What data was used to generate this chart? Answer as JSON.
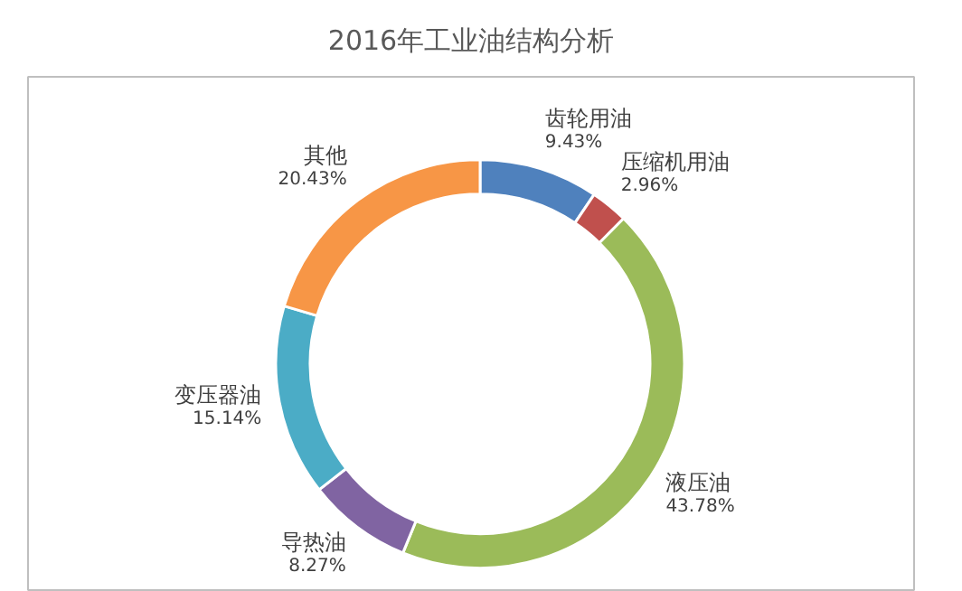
{
  "chart_data": {
    "type": "donut",
    "title": "2016年工业油结构分析",
    "categories": [
      "齿轮用油",
      "压缩机用油",
      "液压油",
      "导热油",
      "变压器油",
      "其他"
    ],
    "values": [
      9.43,
      2.96,
      43.78,
      8.27,
      15.14,
      20.43
    ],
    "value_labels": [
      "9.43%",
      "2.96%",
      "43.78%",
      "8.27%",
      "15.14%",
      "20.43%"
    ],
    "colors": [
      "#4f81bd",
      "#c0504d",
      "#9bbb59",
      "#8064a2",
      "#4bacc6",
      "#f79646"
    ]
  }
}
